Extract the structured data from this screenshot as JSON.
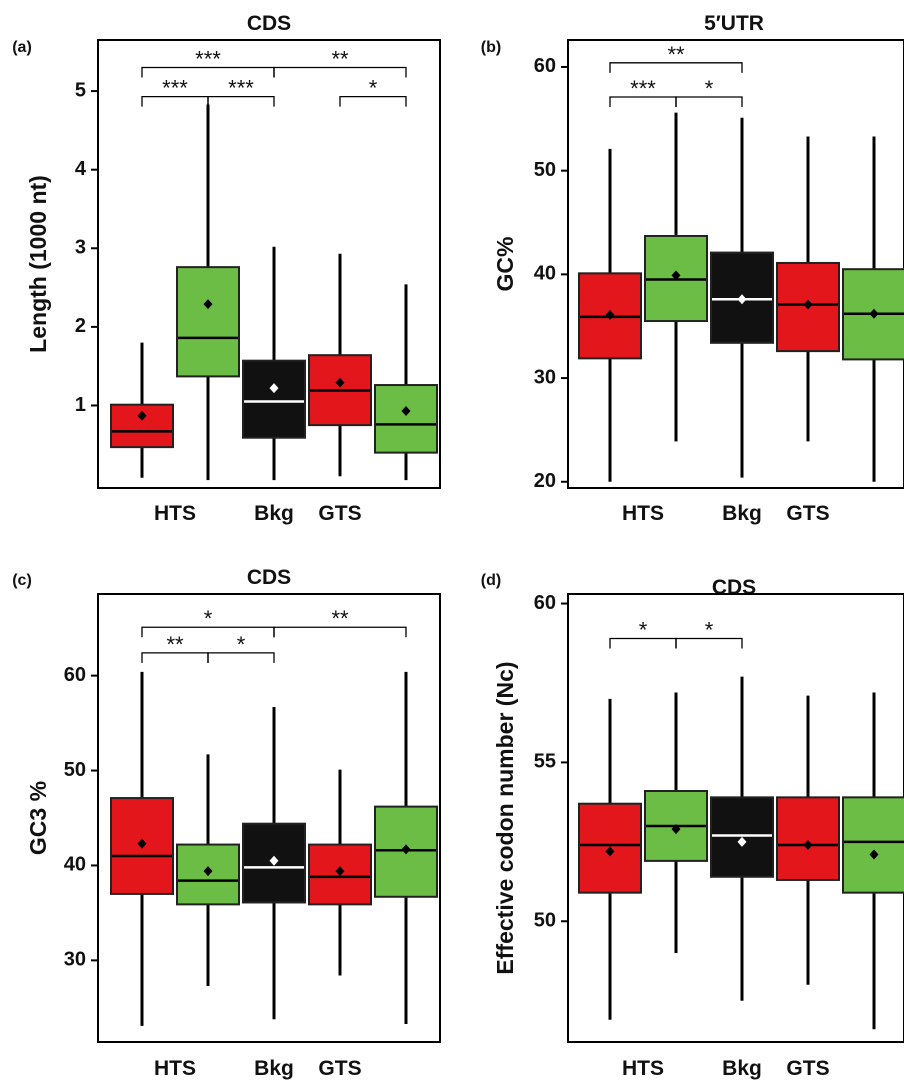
{
  "colors": {
    "red": "#e3161b",
    "green": "#6cbd45",
    "black": "#111111",
    "frame": "#000000"
  },
  "chart_data": [
    {
      "panel": "(a)",
      "type": "boxplot",
      "title": "CDS",
      "xlabel": "",
      "ylabel": "Length (1000 nt)",
      "ylim": [
        -0.05,
        5.65
      ],
      "yticks": [
        1,
        2,
        3,
        4,
        5
      ],
      "xticklabels": [
        {
          "label": "HTS",
          "at": 1.5
        },
        {
          "label": "Bkg",
          "at": 3
        },
        {
          "label": "GTS",
          "at": 4
        }
      ],
      "boxes": [
        {
          "color": "red",
          "whisker_low": 0.08,
          "q1": 0.47,
          "median": 0.67,
          "q3": 1.01,
          "whisker_high": 1.8,
          "mean": 0.87
        },
        {
          "color": "green",
          "whisker_low": 0.05,
          "q1": 1.37,
          "median": 1.86,
          "q3": 2.76,
          "whisker_high": 4.83,
          "mean": 2.29
        },
        {
          "color": "black",
          "whisker_low": 0.05,
          "q1": 0.59,
          "median": 1.05,
          "q3": 1.57,
          "whisker_high": 3.02,
          "mean": 1.22
        },
        {
          "color": "red",
          "whisker_low": 0.1,
          "q1": 0.75,
          "median": 1.19,
          "q3": 1.64,
          "whisker_high": 2.93,
          "mean": 1.29
        },
        {
          "color": "green",
          "whisker_low": 0.05,
          "q1": 0.4,
          "median": 0.76,
          "q3": 1.26,
          "whisker_high": 2.54,
          "mean": 0.93
        }
      ],
      "significance": [
        {
          "from": 1,
          "to": 3,
          "label": "***",
          "y": 5.3
        },
        {
          "from": 3,
          "to": 5,
          "label": "**",
          "y": 5.3
        },
        {
          "from": 1,
          "to": 2,
          "label": "***",
          "y": 4.93
        },
        {
          "from": 2,
          "to": 3,
          "label": "***",
          "y": 4.93
        },
        {
          "from": 4,
          "to": 5,
          "label": "*",
          "y": 4.93
        }
      ]
    },
    {
      "panel": "(b)",
      "type": "boxplot",
      "title": "5′UTR",
      "xlabel": "",
      "ylabel": "GC%",
      "ylim": [
        19.4,
        62.6
      ],
      "yticks": [
        20,
        30,
        40,
        50,
        60
      ],
      "xticklabels": [
        {
          "label": "HTS",
          "at": 1.5
        },
        {
          "label": "Bkg",
          "at": 3
        },
        {
          "label": "GTS",
          "at": 4
        }
      ],
      "boxes": [
        {
          "color": "red",
          "whisker_low": 20,
          "q1": 31.9,
          "median": 35.9,
          "q3": 40.1,
          "whisker_high": 52.1,
          "mean": 36.1
        },
        {
          "color": "green",
          "whisker_low": 23.9,
          "q1": 35.5,
          "median": 39.5,
          "q3": 43.7,
          "whisker_high": 55.6,
          "mean": 39.9
        },
        {
          "color": "black",
          "whisker_low": 20.4,
          "q1": 33.4,
          "median": 37.6,
          "q3": 42.1,
          "whisker_high": 55.1,
          "mean": 37.6
        },
        {
          "color": "red",
          "whisker_low": 23.9,
          "q1": 32.6,
          "median": 37.1,
          "q3": 41.1,
          "whisker_high": 53.3,
          "mean": 37.1
        },
        {
          "color": "green",
          "whisker_low": 20,
          "q1": 31.8,
          "median": 36.2,
          "q3": 40.5,
          "whisker_high": 53.3,
          "mean": 36.2
        }
      ],
      "significance": [
        {
          "from": 1,
          "to": 3,
          "label": "**",
          "y": 60.4
        },
        {
          "from": 1,
          "to": 2,
          "label": "***",
          "y": 57.1
        },
        {
          "from": 2,
          "to": 3,
          "label": "*",
          "y": 57.1
        }
      ]
    },
    {
      "panel": "(c)",
      "type": "boxplot",
      "title": "CDS",
      "xlabel": "",
      "ylabel": "GC3 %",
      "ylim": [
        21.4,
        68.6
      ],
      "yticks": [
        30,
        40,
        50,
        60
      ],
      "xticklabels": [
        {
          "label": "HTS",
          "at": 1.5
        },
        {
          "label": "Bkg",
          "at": 3
        },
        {
          "label": "GTS",
          "at": 4
        }
      ],
      "boxes": [
        {
          "color": "red",
          "whisker_low": 23.1,
          "q1": 37.0,
          "median": 41.0,
          "q3": 47.1,
          "whisker_high": 60.4,
          "mean": 42.3
        },
        {
          "color": "green",
          "whisker_low": 27.3,
          "q1": 35.9,
          "median": 38.4,
          "q3": 42.2,
          "whisker_high": 51.7,
          "mean": 39.4
        },
        {
          "color": "black",
          "whisker_low": 23.8,
          "q1": 36.1,
          "median": 39.8,
          "q3": 44.4,
          "whisker_high": 56.7,
          "mean": 40.5
        },
        {
          "color": "red",
          "whisker_low": 28.4,
          "q1": 35.9,
          "median": 38.8,
          "q3": 42.2,
          "whisker_high": 50.1,
          "mean": 39.4
        },
        {
          "color": "green",
          "whisker_low": 23.3,
          "q1": 36.7,
          "median": 41.6,
          "q3": 46.2,
          "whisker_high": 60.4,
          "mean": 41.7
        }
      ],
      "significance": [
        {
          "from": 1,
          "to": 3,
          "label": "*",
          "y": 65.1
        },
        {
          "from": 3,
          "to": 5,
          "label": "**",
          "y": 65.1
        },
        {
          "from": 1,
          "to": 2,
          "label": "**",
          "y": 62.4
        },
        {
          "from": 2,
          "to": 3,
          "label": "*",
          "y": 62.4
        }
      ]
    },
    {
      "panel": "(d)",
      "type": "boxplot",
      "title": "CDS",
      "xlabel": "",
      "ylabel": "Effective codon number (Nc)",
      "ylim": [
        46.2,
        60.3
      ],
      "yticks": [
        50,
        55,
        60
      ],
      "xticklabels": [
        {
          "label": "HTS",
          "at": 1.5
        },
        {
          "label": "Bkg",
          "at": 3
        },
        {
          "label": "GTS",
          "at": 4
        }
      ],
      "boxes": [
        {
          "color": "red",
          "whisker_low": 46.9,
          "q1": 50.9,
          "median": 52.4,
          "q3": 53.7,
          "whisker_high": 57.0,
          "mean": 52.2
        },
        {
          "color": "green",
          "whisker_low": 49.0,
          "q1": 51.9,
          "median": 53.0,
          "q3": 54.1,
          "whisker_high": 57.2,
          "mean": 52.9
        },
        {
          "color": "black",
          "whisker_low": 47.5,
          "q1": 51.4,
          "median": 52.7,
          "q3": 53.9,
          "whisker_high": 57.7,
          "mean": 52.5
        },
        {
          "color": "red",
          "whisker_low": 48.0,
          "q1": 51.3,
          "median": 52.4,
          "q3": 53.9,
          "whisker_high": 57.1,
          "mean": 52.4
        },
        {
          "color": "green",
          "whisker_low": 46.6,
          "q1": 50.9,
          "median": 52.5,
          "q3": 53.9,
          "whisker_high": 57.2,
          "mean": 52.1
        }
      ],
      "significance": [
        {
          "from": 1,
          "to": 2,
          "label": "*",
          "y": 58.9
        },
        {
          "from": 2,
          "to": 3,
          "label": "*",
          "y": 58.9
        }
      ]
    }
  ]
}
